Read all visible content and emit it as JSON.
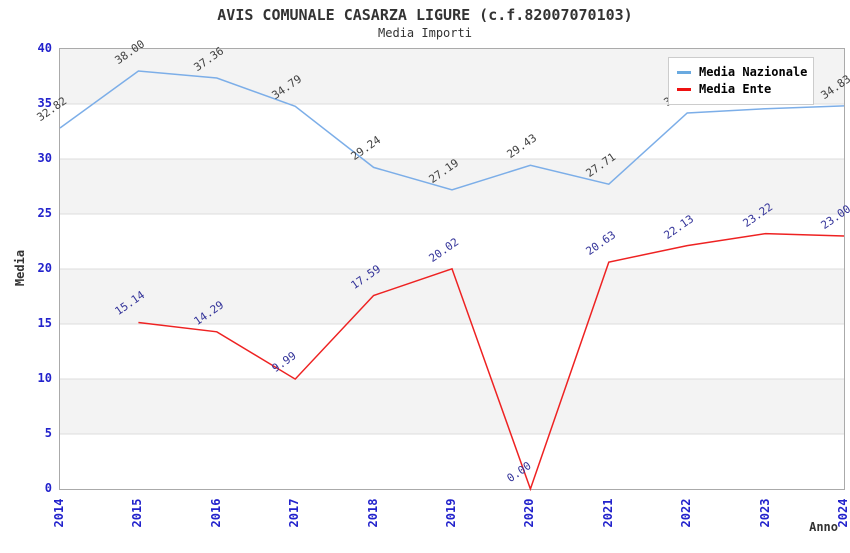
{
  "title": "AVIS COMUNALE CASARZA LIGURE (c.f.82007070103)",
  "subtitle": "Media Importi",
  "axes": {
    "y_label": "Media",
    "x_label": "Anno",
    "y_ticks": [
      0,
      5,
      10,
      15,
      20,
      25,
      30,
      35,
      40
    ],
    "x_ticks": [
      "2014",
      "2015",
      "2016",
      "2017",
      "2018",
      "2019",
      "2020",
      "2021",
      "2022",
      "2023",
      "2024"
    ],
    "tick_color": "#2222cc"
  },
  "legend": {
    "items": [
      {
        "label": "Media Nazionale",
        "color": "#6aaae0"
      },
      {
        "label": "Media Ente",
        "color": "#ee1111"
      }
    ]
  },
  "chart_data": {
    "type": "line",
    "title": "Media Importi",
    "xlabel": "Anno",
    "ylabel": "Media",
    "x": [
      2014,
      2015,
      2016,
      2017,
      2018,
      2019,
      2020,
      2021,
      2022,
      2023,
      2024
    ],
    "ylim": [
      0,
      40
    ],
    "grid": true,
    "legend_position": "top-right",
    "series": [
      {
        "name": "Media Nazionale",
        "color": "#7caee8",
        "label_color": "#404040",
        "values": [
          32.82,
          38.0,
          37.36,
          34.79,
          29.24,
          27.19,
          29.43,
          27.71,
          34.18,
          34.57,
          34.83
        ],
        "labels": [
          "32.82",
          "38.00",
          "37.36",
          "34.79",
          "29.24",
          "27.19",
          "29.43",
          "27.71",
          "34.18",
          "34.57",
          "34.83"
        ]
      },
      {
        "name": "Media Ente",
        "color": "#ee2222",
        "label_color": "#333399",
        "values": [
          null,
          15.14,
          14.29,
          9.99,
          17.59,
          20.02,
          0.0,
          20.63,
          22.13,
          23.22,
          23.0
        ],
        "labels": [
          null,
          "15.14",
          "14.29",
          "9.99",
          "17.59",
          "20.02",
          "0.00",
          "20.63",
          "22.13",
          "23.22",
          "23.00"
        ]
      }
    ]
  }
}
